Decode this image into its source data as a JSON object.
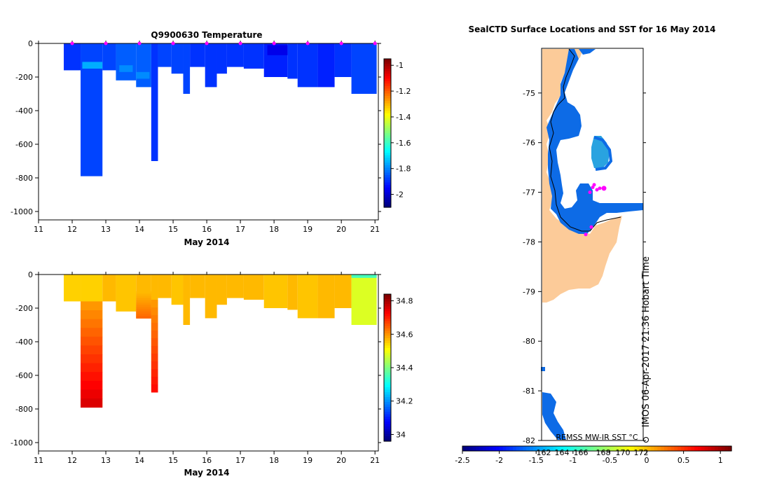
{
  "chart_data": [
    {
      "type": "heatmap",
      "title": "Q9900630  Temperature",
      "xlabel": "May 2014",
      "ylabel": "",
      "xlim": [
        11,
        21.1
      ],
      "ylim": [
        -1050,
        0
      ],
      "xticks": [
        "11",
        "12",
        "13",
        "14",
        "15",
        "16",
        "17",
        "18",
        "19",
        "20",
        "21"
      ],
      "yticks": [
        "0",
        "-200",
        "-400",
        "-600",
        "-800",
        "-1000"
      ],
      "colorbar": {
        "min": -2.1,
        "max": -0.95,
        "ticks": [
          "-1",
          "-1.2",
          "-1.4",
          "-1.6",
          "-1.8",
          "-2"
        ]
      },
      "profile_marker_times": [
        12,
        13,
        14,
        15,
        16,
        17,
        18,
        19,
        20,
        21
      ],
      "profiles": [
        {
          "x0": 11.75,
          "x1": 12.25,
          "depth": 160,
          "value": -1.9
        },
        {
          "x0": 12.25,
          "x1": 12.9,
          "depth": 790,
          "value": -1.88
        },
        {
          "x0": 12.9,
          "x1": 13.3,
          "depth": 160,
          "value": -1.88
        },
        {
          "x0": 13.3,
          "x1": 13.9,
          "depth": 220,
          "value": -1.85
        },
        {
          "x0": 13.9,
          "x1": 14.35,
          "depth": 260,
          "value": -1.85
        },
        {
          "x0": 14.35,
          "x1": 14.55,
          "depth": 700,
          "value": -1.9
        },
        {
          "x0": 14.55,
          "x1": 14.95,
          "depth": 140,
          "value": -1.88
        },
        {
          "x0": 14.95,
          "x1": 15.3,
          "depth": 180,
          "value": -1.88
        },
        {
          "x0": 15.3,
          "x1": 15.5,
          "depth": 300,
          "value": -1.88
        },
        {
          "x0": 15.5,
          "x1": 15.95,
          "depth": 140,
          "value": -1.9
        },
        {
          "x0": 15.95,
          "x1": 16.3,
          "depth": 260,
          "value": -1.9
        },
        {
          "x0": 16.3,
          "x1": 16.6,
          "depth": 180,
          "value": -1.9
        },
        {
          "x0": 16.6,
          "x1": 17.1,
          "depth": 140,
          "value": -1.9
        },
        {
          "x0": 17.1,
          "x1": 17.7,
          "depth": 150,
          "value": -1.9
        },
        {
          "x0": 17.7,
          "x1": 18.4,
          "depth": 200,
          "value": -1.92
        },
        {
          "x0": 18.4,
          "x1": 18.7,
          "depth": 210,
          "value": -1.9
        },
        {
          "x0": 18.7,
          "x1": 19.3,
          "depth": 260,
          "value": -1.9
        },
        {
          "x0": 19.3,
          "x1": 19.8,
          "depth": 260,
          "value": -1.92
        },
        {
          "x0": 19.8,
          "x1": 20.3,
          "depth": 200,
          "value": -1.9
        },
        {
          "x0": 20.3,
          "x1": 21.05,
          "depth": 300,
          "value": -1.88
        }
      ],
      "highlights": [
        {
          "x0": 12.3,
          "x1": 12.9,
          "d0": 110,
          "d1": 150,
          "value": -1.76
        },
        {
          "x0": 13.4,
          "x1": 13.8,
          "d0": 130,
          "d1": 170,
          "value": -1.8
        },
        {
          "x0": 13.9,
          "x1": 14.3,
          "d0": 170,
          "d1": 210,
          "value": -1.8
        },
        {
          "x0": 17.8,
          "x1": 18.4,
          "d0": 10,
          "d1": 70,
          "value": -1.98
        }
      ]
    },
    {
      "type": "heatmap",
      "title": "",
      "xlabel": "May 2014",
      "ylabel": "",
      "xlim": [
        11,
        21.1
      ],
      "ylim": [
        -1050,
        0
      ],
      "xticks": [
        "11",
        "12",
        "13",
        "14",
        "15",
        "16",
        "17",
        "18",
        "19",
        "20",
        "21"
      ],
      "yticks": [
        "0",
        "-200",
        "-400",
        "-600",
        "-800",
        "-1000"
      ],
      "colorbar": {
        "min": 33.96,
        "max": 34.84,
        "ticks": [
          "34.8",
          "34.6",
          "34.4",
          "34.2",
          "34"
        ]
      },
      "profiles": [
        {
          "x0": 11.75,
          "x1": 12.25,
          "depth": 160,
          "value": 34.55
        },
        {
          "x0": 12.25,
          "x1": 12.9,
          "depth": 790,
          "value": 34.55
        },
        {
          "x0": 12.9,
          "x1": 13.3,
          "depth": 160,
          "value": 34.57
        },
        {
          "x0": 13.3,
          "x1": 13.9,
          "depth": 220,
          "value": 34.56
        },
        {
          "x0": 13.9,
          "x1": 14.35,
          "depth": 260,
          "value": 34.57
        },
        {
          "x0": 14.35,
          "x1": 14.55,
          "depth": 700,
          "value": 34.57
        },
        {
          "x0": 14.55,
          "x1": 14.95,
          "depth": 140,
          "value": 34.57
        },
        {
          "x0": 14.95,
          "x1": 15.3,
          "depth": 180,
          "value": 34.56
        },
        {
          "x0": 15.3,
          "x1": 15.5,
          "depth": 300,
          "value": 34.57
        },
        {
          "x0": 15.5,
          "x1": 15.95,
          "depth": 140,
          "value": 34.57
        },
        {
          "x0": 15.95,
          "x1": 16.3,
          "depth": 260,
          "value": 34.57
        },
        {
          "x0": 16.3,
          "x1": 16.6,
          "depth": 180,
          "value": 34.57
        },
        {
          "x0": 16.6,
          "x1": 17.1,
          "depth": 140,
          "value": 34.57
        },
        {
          "x0": 17.1,
          "x1": 17.7,
          "depth": 150,
          "value": 34.57
        },
        {
          "x0": 17.7,
          "x1": 18.4,
          "depth": 200,
          "value": 34.56
        },
        {
          "x0": 18.4,
          "x1": 18.7,
          "depth": 210,
          "value": 34.57
        },
        {
          "x0": 18.7,
          "x1": 19.3,
          "depth": 260,
          "value": 34.56
        },
        {
          "x0": 19.3,
          "x1": 19.8,
          "depth": 260,
          "value": 34.57
        },
        {
          "x0": 19.8,
          "x1": 20.3,
          "depth": 200,
          "value": 34.57
        },
        {
          "x0": 20.3,
          "x1": 21.05,
          "depth": 300,
          "value": 34.48
        }
      ],
      "deep_gradients": [
        {
          "x0": 12.25,
          "x1": 12.9,
          "d0": 160,
          "d1": 790,
          "v0": 34.6,
          "v1": 34.76
        },
        {
          "x0": 13.9,
          "x1": 14.35,
          "d0": 100,
          "d1": 260,
          "v0": 34.57,
          "v1": 34.64
        },
        {
          "x0": 14.35,
          "x1": 14.55,
          "d0": 150,
          "d1": 700,
          "v0": 34.6,
          "v1": 34.72
        }
      ],
      "surface_strip": {
        "x0": 20.3,
        "x1": 21.05,
        "d0": 0,
        "d1": 20,
        "value": 34.35
      }
    },
    {
      "type": "map",
      "title": "SealCTD Surface Locations and SST for 16 May 2014",
      "ylim": [
        -82,
        -74.1
      ],
      "yticks": [
        "-75",
        "-76",
        "-77",
        "-78",
        "-79",
        "-80",
        "-81",
        "-82"
      ],
      "colorbar": {
        "label": "REMSS MW-IR SST °C",
        "min": -2.5,
        "max": 1.15,
        "ticks": [
          "-2.5",
          "-2",
          "-1.5",
          "-1",
          "-0.5",
          "0",
          "0.5",
          "1"
        ],
        "longitude_overlay_labels": [
          "162",
          "164",
          "166",
          "168",
          "170",
          "172"
        ]
      },
      "colors": {
        "land": "#fccb99",
        "sea_ice_edge": "#0d6be6",
        "sst_mid": "#29a3e0",
        "positions": "#ff00ff"
      },
      "profile_positions_lat": [
        -76.85,
        -76.9,
        -77.0,
        -76.95,
        -76.92,
        -77.7,
        -77.85
      ],
      "side_label": "IMOS 06-Apr-2017 21:36 Hobart Time"
    }
  ]
}
